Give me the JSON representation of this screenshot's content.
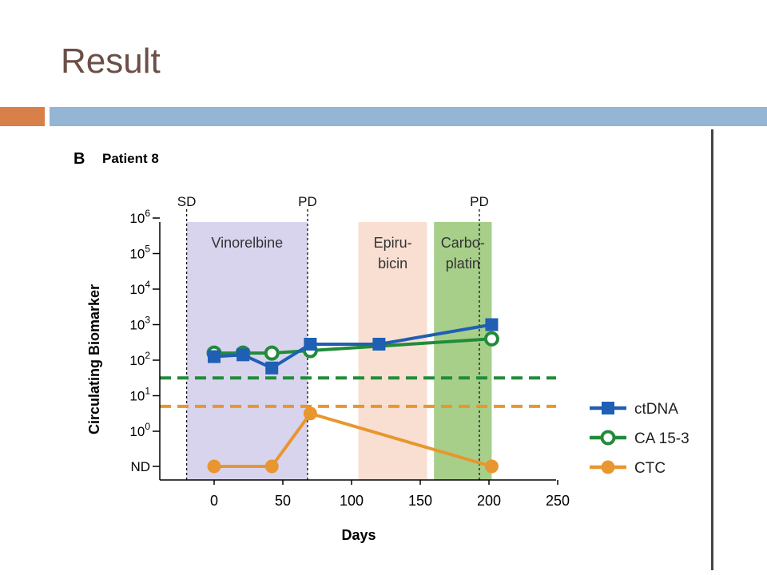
{
  "slide": {
    "title": "Result"
  },
  "panel": {
    "letter": "B",
    "title": "Patient 8"
  },
  "chart_data": {
    "type": "line",
    "xlabel": "Days",
    "ylabel": "Circulating Biomarker",
    "xlim": [
      -40,
      250
    ],
    "x_ticks": [
      0,
      50,
      100,
      150,
      200,
      250
    ],
    "y_ticks": [
      {
        "value": "ND",
        "base": "ND",
        "exp": ""
      },
      {
        "value": 0,
        "base": "10",
        "exp": "0"
      },
      {
        "value": 1,
        "base": "10",
        "exp": "1"
      },
      {
        "value": 2,
        "base": "10",
        "exp": "2"
      },
      {
        "value": 3,
        "base": "10",
        "exp": "3"
      },
      {
        "value": 4,
        "base": "10",
        "exp": "4"
      },
      {
        "value": 5,
        "base": "10",
        "exp": "5"
      },
      {
        "value": 6,
        "base": "10",
        "exp": "6"
      }
    ],
    "y_scale": "log10 with ND category below 10^0",
    "treatments": [
      {
        "label_lines": [
          "Vinorelbine"
        ],
        "x_start": -20,
        "x_end": 68,
        "color": "#d8d4ee"
      },
      {
        "label_lines": [
          "Epiru-",
          "bicin"
        ],
        "x_start": 105,
        "x_end": 155,
        "color": "#f9dfd2"
      },
      {
        "label_lines": [
          "Carbo-",
          "platin"
        ],
        "x_start": 160,
        "x_end": 202,
        "color": "#a7cf8a"
      }
    ],
    "events": [
      {
        "label": "SD",
        "x": -20
      },
      {
        "label": "PD",
        "x": 68
      },
      {
        "label": "PD",
        "x": 193
      }
    ],
    "thresholds": [
      {
        "series": "CA 15-3",
        "log_value": 1.5,
        "color": "#228b3a"
      },
      {
        "series": "CTC",
        "log_value": 0.7,
        "color": "#e8962f"
      }
    ],
    "series": [
      {
        "name": "ctDNA",
        "color": "#1f5fb4",
        "marker": "square",
        "x": [
          0,
          21,
          42,
          70,
          120,
          202
        ],
        "log_y": [
          2.1,
          2.15,
          1.78,
          2.45,
          2.45,
          3.0
        ]
      },
      {
        "name": "CA 15-3",
        "color": "#228b3a",
        "marker": "open-circle",
        "x": [
          0,
          21,
          42,
          70,
          202
        ],
        "log_y": [
          2.2,
          2.2,
          2.2,
          2.27,
          2.6
        ]
      },
      {
        "name": "CTC",
        "color": "#e8962f",
        "marker": "filled-circle",
        "x": [
          0,
          42,
          70,
          202
        ],
        "y_labels": [
          "ND",
          "ND",
          "",
          "ND"
        ],
        "log_y": [
          "ND",
          "ND",
          0.5,
          "ND"
        ]
      }
    ]
  }
}
